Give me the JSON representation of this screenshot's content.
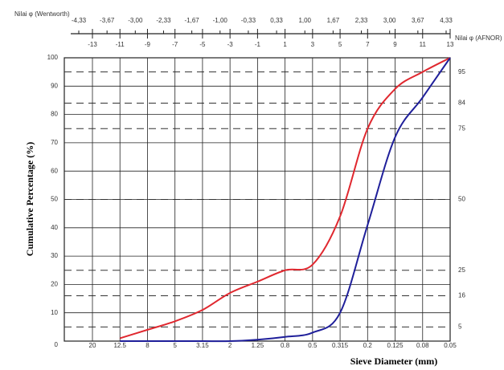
{
  "chart_data": {
    "type": "line",
    "y_title": "Cumulative Percentage (%)",
    "x_title": "Sieve Diameter (mm)",
    "top_title_wentworth": "Nilai φ (Wentworth)",
    "top_title_afnor": "Nilai φ (AFNOR)",
    "categories": [
      "20",
      "12.5",
      "8",
      "5",
      "3.15",
      "2",
      "1.25",
      "0.8",
      "0.5",
      "0.315",
      "0.2",
      "0.125",
      "0.08",
      "0.05"
    ],
    "series": [
      {
        "name": "Red curve",
        "color": "#e0282f",
        "values": [
          null,
          1,
          4,
          7,
          11,
          17,
          21,
          25,
          27,
          44,
          75,
          89,
          95,
          100
        ]
      },
      {
        "name": "Blue curve",
        "color": "#1f1f9a",
        "values": [
          null,
          0,
          0,
          0,
          0,
          0,
          0.5,
          1.5,
          3,
          10,
          41,
          72,
          86,
          100
        ]
      }
    ],
    "ylim": [
      0,
      100
    ],
    "yticks": [
      0,
      10,
      20,
      30,
      40,
      50,
      60,
      70,
      80,
      90,
      100
    ],
    "grid": true,
    "percentile_lines": [
      5,
      16,
      25,
      50,
      75,
      84,
      95
    ],
    "wentworth_labels": [
      "-4,33",
      "-3,67",
      "-3,00",
      "-2,33",
      "-1,67",
      "-1,00",
      "-0,33",
      "0,33",
      "1,00",
      "1,67",
      "2,33",
      "3,00",
      "3,67",
      "4,33"
    ],
    "afnor_ticks": [
      -13,
      -11,
      -9,
      -7,
      -5,
      -3,
      -1,
      1,
      3,
      5,
      7,
      9,
      11,
      13
    ]
  }
}
